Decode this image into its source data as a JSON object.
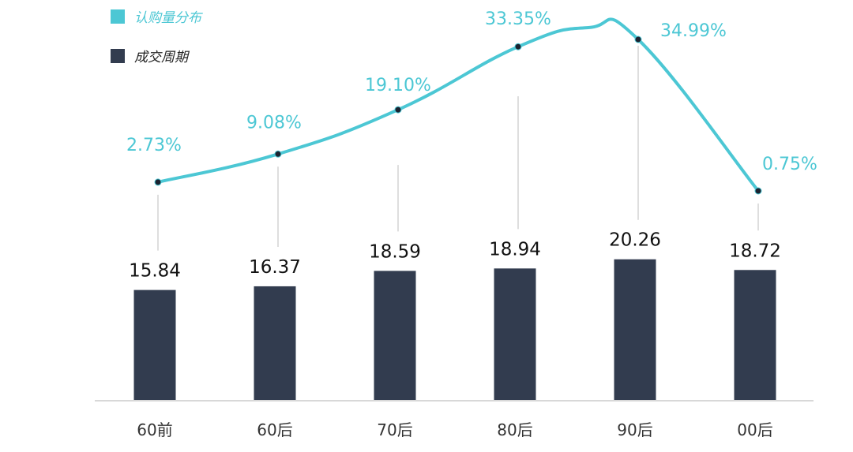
{
  "chart_data": {
    "type": "bar+line",
    "categories": [
      "60前",
      "60后",
      "70后",
      "80后",
      "90后",
      "00后"
    ],
    "series": [
      {
        "name": "认购量分布",
        "type": "line",
        "values": [
          2.73,
          9.08,
          19.1,
          33.35,
          34.99,
          0.75
        ],
        "labels": [
          "2.73%",
          "9.08%",
          "19.10%",
          "33.35%",
          "34.99%",
          "0.75%"
        ],
        "color": "#4cc7d4"
      },
      {
        "name": "成交周期",
        "type": "bar",
        "values": [
          15.84,
          16.37,
          18.59,
          18.94,
          20.26,
          18.72
        ],
        "labels": [
          "15.84",
          "16.37",
          "18.59",
          "18.94",
          "20.26",
          "18.72"
        ],
        "color": "#323c4f"
      }
    ],
    "legend": "top-left",
    "grid": false
  }
}
